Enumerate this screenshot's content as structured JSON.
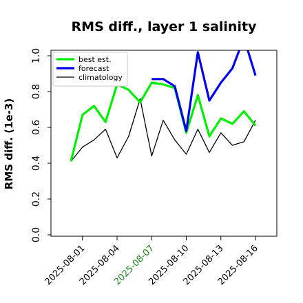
{
  "chart_data": {
    "type": "line",
    "title": "RMS diff., layer 1 salinity",
    "ylabel": "RMS diff. (1e-3)",
    "xlabel": "",
    "ylim": [
      0,
      1.0
    ],
    "yticks": [
      "0.0",
      "0.2",
      "0.4",
      "0.6",
      "0.8",
      "1.0"
    ],
    "x_ticks": [
      {
        "label": "2025-08-01",
        "color": "#000000"
      },
      {
        "label": "2025-08-04",
        "color": "#000000"
      },
      {
        "label": "2025-08-07",
        "color": "#228B22"
      },
      {
        "label": "2025-08-10",
        "color": "#000000"
      },
      {
        "label": "2025-08-13",
        "color": "#000000"
      },
      {
        "label": "2025-08-16",
        "color": "#000000"
      }
    ],
    "legend_placement": "top-left",
    "grid": false,
    "x": [
      "2025-07-31",
      "2025-08-01",
      "2025-08-02",
      "2025-08-03",
      "2025-08-04",
      "2025-08-05",
      "2025-08-06",
      "2025-08-07",
      "2025-08-08",
      "2025-08-09",
      "2025-08-10",
      "2025-08-11",
      "2025-08-12",
      "2025-08-13",
      "2025-08-14",
      "2025-08-15",
      "2025-08-16"
    ],
    "series": [
      {
        "name": "best est.",
        "color": "#00ee00",
        "values": [
          0.41,
          0.67,
          0.72,
          0.63,
          0.84,
          0.81,
          0.74,
          0.85,
          0.84,
          0.82,
          0.57,
          0.78,
          0.55,
          0.65,
          0.62,
          0.69,
          0.61
        ]
      },
      {
        "name": "forecast",
        "color": "#0000ee",
        "values": [
          null,
          null,
          null,
          null,
          null,
          null,
          null,
          0.87,
          0.87,
          0.83,
          0.58,
          1.02,
          0.75,
          0.85,
          0.93,
          1.1,
          0.89
        ]
      },
      {
        "name": "climatology",
        "color": "#000000",
        "values": [
          0.41,
          0.49,
          0.53,
          0.59,
          0.43,
          0.55,
          0.76,
          0.44,
          0.64,
          0.53,
          0.45,
          0.59,
          0.46,
          0.57,
          0.5,
          0.52,
          0.64
        ]
      }
    ]
  }
}
